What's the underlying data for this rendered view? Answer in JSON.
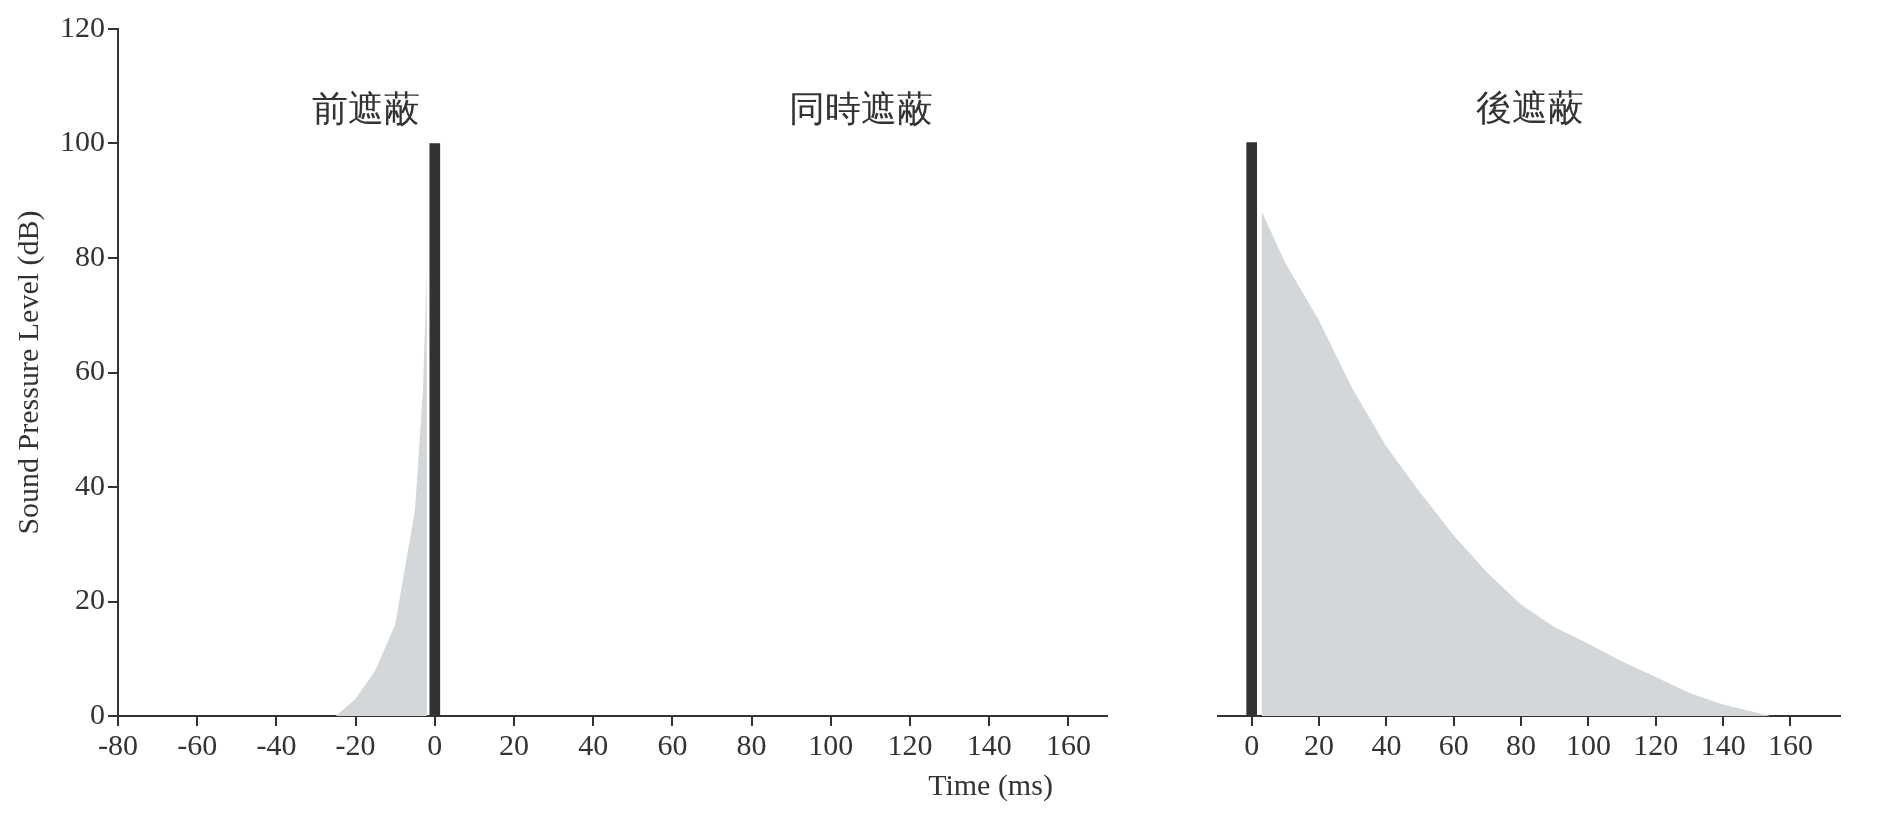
{
  "chart_data": [
    {
      "type": "area",
      "xlabel": "Time (ms)",
      "ylabel": "Sound Pressure Level (dB)",
      "xlim": [
        -80,
        170
      ],
      "ylim": [
        0,
        120
      ],
      "xticks": [
        -80,
        -60,
        -40,
        -20,
        0,
        20,
        40,
        60,
        80,
        100,
        120,
        140,
        160
      ],
      "yticks": [
        0,
        20,
        40,
        60,
        80,
        100,
        120
      ],
      "grid": false,
      "series": [
        {
          "color": "#d3d7da",
          "x": [
            -25,
            -20,
            -15,
            -10,
            -5,
            -3,
            -2
          ],
          "values": [
            0,
            3,
            8,
            16,
            36,
            57,
            78
          ]
        },
        {
          "type": "bar",
          "color": "#333333",
          "x": [
            0
          ],
          "values": [
            100
          ]
        }
      ],
      "annotations": [
        "前遮蔽",
        "同時遮蔽"
      ]
    },
    {
      "type": "area",
      "xlim": [
        -10,
        175
      ],
      "ylim": [
        0,
        120
      ],
      "xticks": [
        0,
        20,
        40,
        60,
        80,
        100,
        120,
        140,
        160
      ],
      "tick_labels": "x",
      "grid": false,
      "series": [
        {
          "color": "#d3d7da",
          "x": [
            3,
            10,
            20,
            30,
            40,
            50,
            60,
            70,
            80,
            90,
            100,
            110,
            120,
            130,
            140,
            154
          ],
          "values": [
            88,
            79,
            69,
            57,
            47,
            39,
            31.5,
            25,
            19.4,
            15.5,
            12.6,
            9.5,
            6.8,
            4,
            2,
            0
          ]
        },
        {
          "type": "bar",
          "color": "#333333",
          "x": [
            0
          ],
          "values": [
            100
          ]
        }
      ],
      "annotations": [
        "後遮蔽"
      ]
    }
  ]
}
